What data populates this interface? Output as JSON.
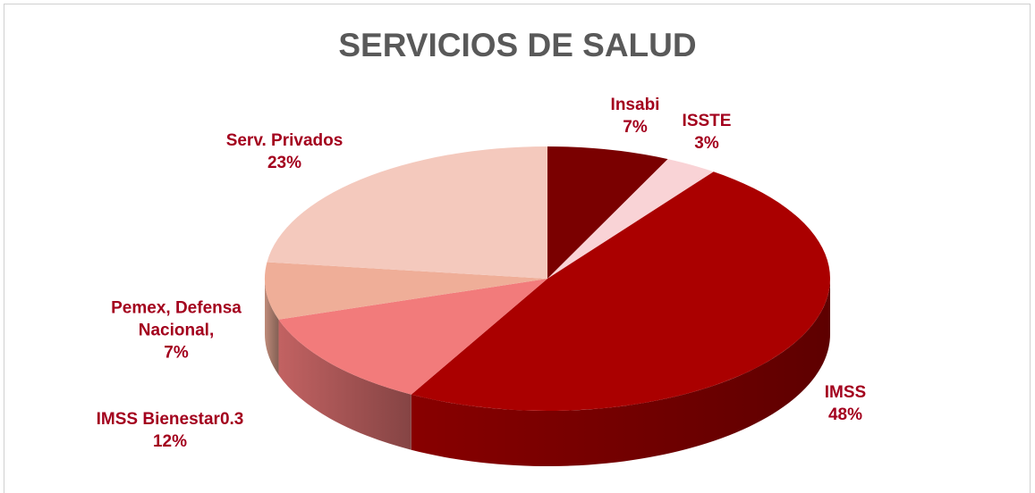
{
  "chart_data": {
    "type": "pie",
    "title": "SERVICIOS DE SALUD",
    "categories": [
      "Insabi",
      "ISSTE",
      "IMSS",
      "IMSS Bienestar0.3",
      "Pemex, Defensa Nacional,",
      "Serv. Privados"
    ],
    "values": [
      7,
      3,
      48,
      12,
      7,
      23
    ],
    "value_labels": [
      "7%",
      "3%",
      "48%",
      "12%",
      "7%",
      "23%"
    ],
    "colors": [
      "#7a0000",
      "#f9d3d6",
      "#aa0000",
      "#f27b7b",
      "#efae98",
      "#f4c9bd"
    ]
  }
}
